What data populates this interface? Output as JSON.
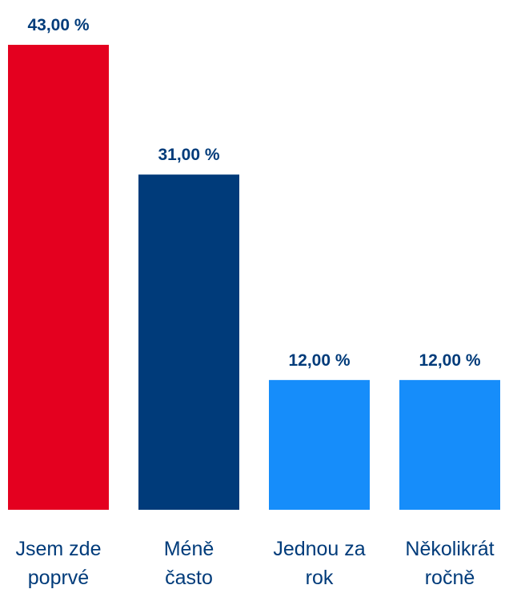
{
  "chart_data": {
    "type": "bar",
    "categories": [
      [
        "Jsem zde",
        "poprvé"
      ],
      [
        "Méně",
        "často"
      ],
      [
        "Jednou za",
        "rok"
      ],
      [
        "Několikrát",
        "ročně"
      ]
    ],
    "values": [
      43,
      31,
      12,
      12
    ],
    "value_labels": [
      "43,00 %",
      "31,00 %",
      "12,00 %",
      "12,00 %"
    ],
    "bar_colors": [
      "#e4001f",
      "#003b7a",
      "#168dfa",
      "#168dfa"
    ],
    "label_color": "#003b7a",
    "category_label_color": "#003b7a",
    "ylim": [
      0,
      43
    ],
    "grid": false,
    "legend": "none"
  }
}
